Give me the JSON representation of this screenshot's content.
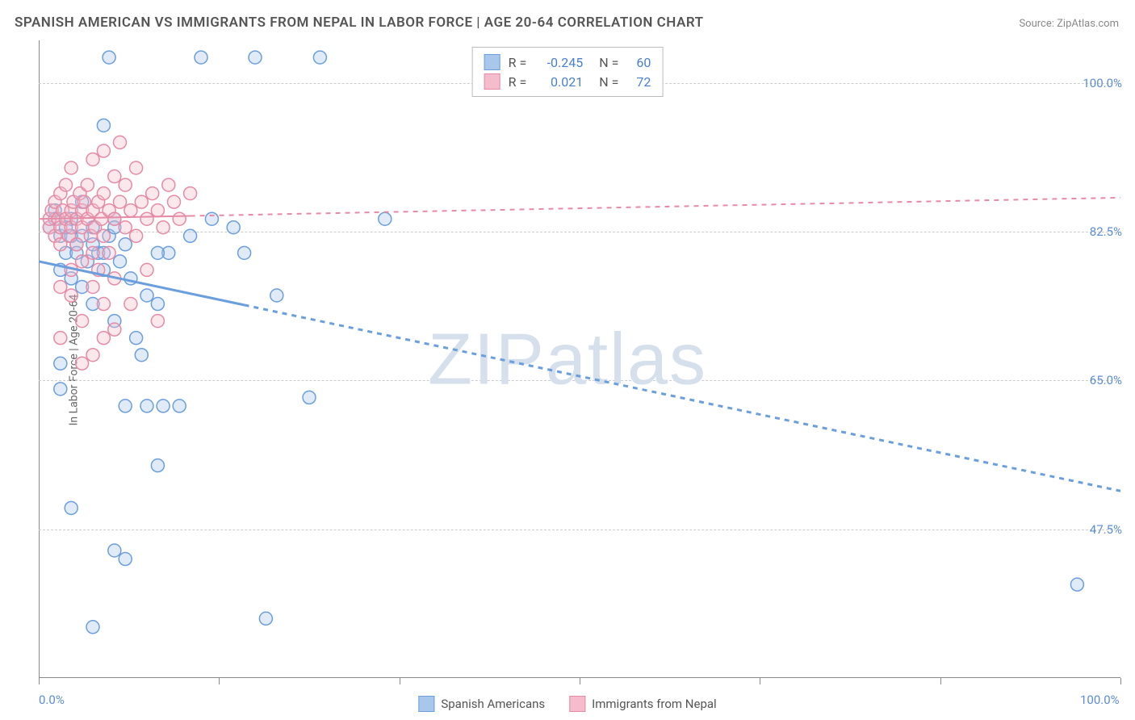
{
  "title": "SPANISH AMERICAN VS IMMIGRANTS FROM NEPAL IN LABOR FORCE | AGE 20-64 CORRELATION CHART",
  "source_label": "Source:",
  "source_name": "ZipAtlas.com",
  "ylabel": "In Labor Force | Age 20-64",
  "watermark_bold": "ZIP",
  "watermark_thin": "atlas",
  "chart": {
    "type": "scatter",
    "background_color": "#ffffff",
    "grid_color": "#cccccc",
    "axis_color": "#888888",
    "xlim": [
      0,
      100
    ],
    "ylim": [
      30,
      105
    ],
    "x_ticks": [
      0,
      16.67,
      33.33,
      50,
      66.67,
      83.33,
      100
    ],
    "x_tick_labels": {
      "0": "0.0%",
      "100": "100.0%"
    },
    "y_gridlines": [
      47.5,
      65.0,
      82.5,
      100.0
    ],
    "y_tick_labels": [
      "47.5%",
      "65.0%",
      "82.5%",
      "100.0%"
    ],
    "label_color": "#5b8dd6",
    "label_fontsize": 15,
    "title_fontsize": 17,
    "title_color": "#555555",
    "marker_radius": 8,
    "marker_stroke_width": 1.5,
    "marker_fill_opacity": 0.35,
    "series": [
      {
        "name": "Spanish Americans",
        "color": "#6a9edc",
        "fill": "#a9c7ea",
        "R": "-0.245",
        "N": "60",
        "trend": {
          "x1": 0,
          "y1": 79,
          "x2": 100,
          "y2": 52,
          "solid_until_x": 19,
          "stroke_width": 3
        },
        "points": [
          [
            1,
            83
          ],
          [
            1.5,
            85
          ],
          [
            2,
            82
          ],
          [
            2,
            78
          ],
          [
            2.5,
            80
          ],
          [
            3,
            84
          ],
          [
            3,
            77
          ],
          [
            3.5,
            81
          ],
          [
            4,
            86
          ],
          [
            4,
            76
          ],
          [
            4.5,
            79
          ],
          [
            5,
            83
          ],
          [
            5,
            74
          ],
          [
            5.5,
            80
          ],
          [
            6,
            78
          ],
          [
            6,
            95
          ],
          [
            6.5,
            82
          ],
          [
            6.5,
            103
          ],
          [
            7,
            84
          ],
          [
            7,
            72
          ],
          [
            7.5,
            79
          ],
          [
            8,
            81
          ],
          [
            8,
            62
          ],
          [
            8.5,
            77
          ],
          [
            9,
            70
          ],
          [
            9.5,
            68
          ],
          [
            10,
            75
          ],
          [
            10,
            62
          ],
          [
            11,
            74
          ],
          [
            11.5,
            62
          ],
          [
            12,
            80
          ],
          [
            13,
            62
          ],
          [
            14,
            82
          ],
          [
            2,
            64
          ],
          [
            3,
            50
          ],
          [
            5,
            36
          ],
          [
            7,
            45
          ],
          [
            8,
            44
          ],
          [
            11,
            55
          ],
          [
            11,
            80
          ],
          [
            15,
            103
          ],
          [
            16,
            84
          ],
          [
            18,
            83
          ],
          [
            19,
            80
          ],
          [
            20,
            103
          ],
          [
            21,
            37
          ],
          [
            22,
            75
          ],
          [
            25,
            63
          ],
          [
            26,
            103
          ],
          [
            32,
            84
          ],
          [
            3,
            82
          ],
          [
            4,
            82
          ],
          [
            5,
            81
          ],
          [
            6,
            80
          ],
          [
            7,
            83
          ],
          [
            2,
            67
          ],
          [
            96,
            41
          ],
          [
            1.5,
            84
          ],
          [
            2.5,
            83
          ],
          [
            3.5,
            80
          ]
        ]
      },
      {
        "name": "Immigrants from Nepal",
        "color": "#e68aa5",
        "fill": "#f4bccc",
        "R": "0.021",
        "N": "72",
        "trend": {
          "x1": 0,
          "y1": 84,
          "x2": 100,
          "y2": 86.5,
          "solid_until_x": 14,
          "stroke_width": 2
        },
        "points": [
          [
            1,
            83
          ],
          [
            1,
            84
          ],
          [
            1.2,
            85
          ],
          [
            1.5,
            82
          ],
          [
            1.5,
            86
          ],
          [
            1.8,
            84
          ],
          [
            2,
            83
          ],
          [
            2,
            87
          ],
          [
            2,
            81
          ],
          [
            2.2,
            85
          ],
          [
            2.5,
            84
          ],
          [
            2.5,
            88
          ],
          [
            2.8,
            82
          ],
          [
            3,
            85
          ],
          [
            3,
            83
          ],
          [
            3,
            90
          ],
          [
            3.2,
            86
          ],
          [
            3.5,
            84
          ],
          [
            3.5,
            81
          ],
          [
            3.8,
            87
          ],
          [
            4,
            85
          ],
          [
            4,
            83
          ],
          [
            4,
            79
          ],
          [
            4.2,
            86
          ],
          [
            4.5,
            84
          ],
          [
            4.5,
            88
          ],
          [
            4.8,
            82
          ],
          [
            5,
            85
          ],
          [
            5,
            91
          ],
          [
            5,
            80
          ],
          [
            5.2,
            83
          ],
          [
            5.5,
            86
          ],
          [
            5.5,
            78
          ],
          [
            5.8,
            84
          ],
          [
            6,
            87
          ],
          [
            6,
            82
          ],
          [
            6,
            92
          ],
          [
            6.5,
            85
          ],
          [
            6.5,
            80
          ],
          [
            7,
            89
          ],
          [
            7,
            84
          ],
          [
            7,
            77
          ],
          [
            7.5,
            86
          ],
          [
            7.5,
            93
          ],
          [
            8,
            83
          ],
          [
            8,
            88
          ],
          [
            8.5,
            85
          ],
          [
            8.5,
            74
          ],
          [
            9,
            90
          ],
          [
            9,
            82
          ],
          [
            9.5,
            86
          ],
          [
            10,
            84
          ],
          [
            10,
            78
          ],
          [
            10.5,
            87
          ],
          [
            11,
            85
          ],
          [
            11,
            72
          ],
          [
            11.5,
            83
          ],
          [
            12,
            88
          ],
          [
            12.5,
            86
          ],
          [
            13,
            84
          ],
          [
            14,
            87
          ],
          [
            2,
            70
          ],
          [
            3,
            75
          ],
          [
            4,
            72
          ],
          [
            5,
            68
          ],
          [
            6,
            70
          ],
          [
            4,
            67
          ],
          [
            3,
            78
          ],
          [
            2,
            76
          ],
          [
            5,
            76
          ],
          [
            6,
            74
          ],
          [
            7,
            71
          ]
        ]
      }
    ]
  },
  "legend_bottom": [
    {
      "label": "Spanish Americans",
      "fill": "#a9c7ea",
      "border": "#6a9edc"
    },
    {
      "label": "Immigrants from Nepal",
      "fill": "#f4bccc",
      "border": "#e68aa5"
    }
  ]
}
